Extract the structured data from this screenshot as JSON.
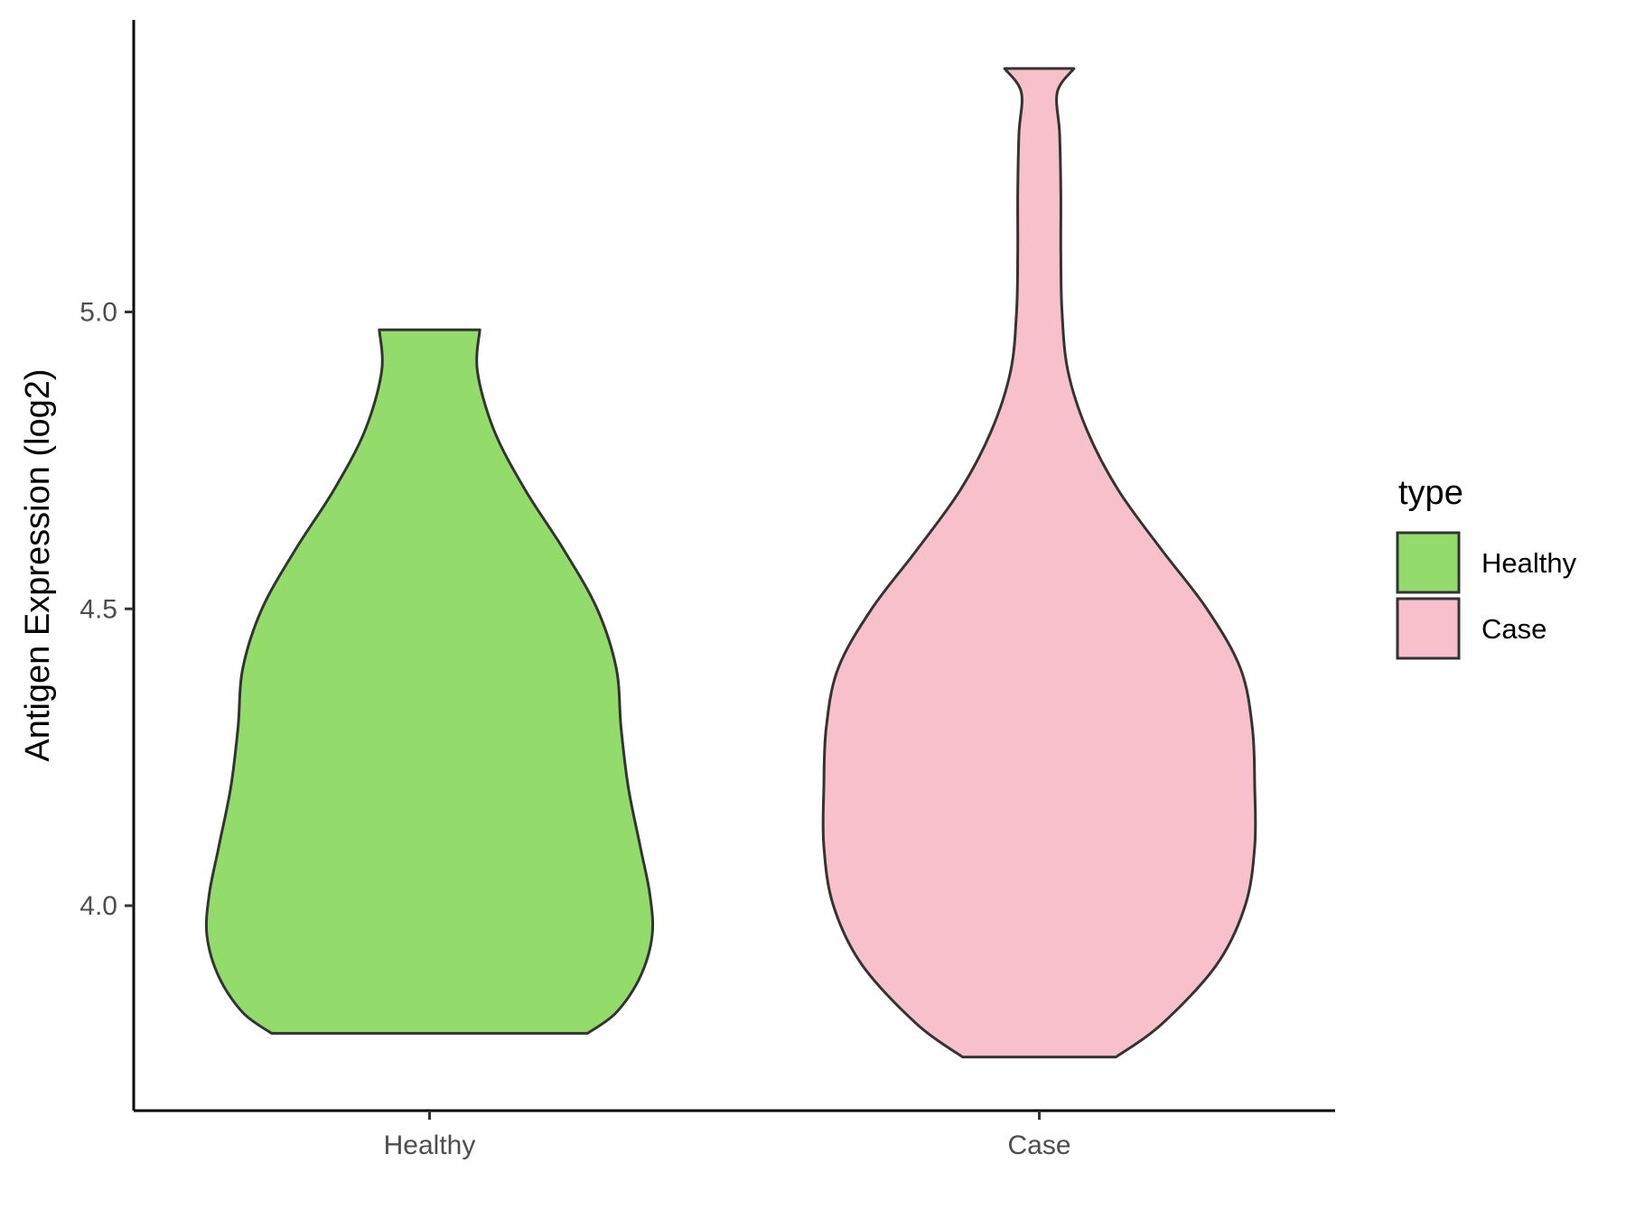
{
  "chart_data": {
    "type": "violin",
    "categories": [
      "Healthy",
      "Case"
    ],
    "ylabel": "Antigen Expression (log2)",
    "xlabel": "",
    "ylim": [
      3.66,
      5.49
    ],
    "yticks": [
      4.0,
      4.5,
      5.0
    ],
    "ytick_labels": [
      "4.0",
      "4.5",
      "5.0"
    ],
    "grid": false,
    "legend": {
      "title": "type",
      "placement": "right",
      "entries": [
        {
          "label": "Healthy",
          "color": "#93dc6b"
        },
        {
          "label": "Case",
          "color": "#f8c0cb"
        }
      ]
    },
    "series": [
      {
        "name": "Healthy",
        "color": "#93dc6b",
        "min": 3.785,
        "max": 4.97,
        "density": [
          [
            3.785,
            0.66
          ],
          [
            3.82,
            0.78
          ],
          [
            3.88,
            0.88
          ],
          [
            3.95,
            0.93
          ],
          [
            4.02,
            0.92
          ],
          [
            4.1,
            0.88
          ],
          [
            4.2,
            0.83
          ],
          [
            4.3,
            0.8
          ],
          [
            4.4,
            0.78
          ],
          [
            4.5,
            0.7
          ],
          [
            4.6,
            0.56
          ],
          [
            4.7,
            0.4
          ],
          [
            4.8,
            0.27
          ],
          [
            4.9,
            0.2
          ],
          [
            4.97,
            0.21
          ]
        ]
      },
      {
        "name": "Case",
        "color": "#f8c0cb",
        "min": 3.745,
        "max": 5.41,
        "density": [
          [
            3.745,
            0.32
          ],
          [
            3.8,
            0.51
          ],
          [
            3.9,
            0.74
          ],
          [
            4.0,
            0.86
          ],
          [
            4.1,
            0.9
          ],
          [
            4.2,
            0.9
          ],
          [
            4.3,
            0.89
          ],
          [
            4.4,
            0.84
          ],
          [
            4.5,
            0.7
          ],
          [
            4.6,
            0.51
          ],
          [
            4.7,
            0.33
          ],
          [
            4.8,
            0.2
          ],
          [
            4.9,
            0.12
          ],
          [
            5.0,
            0.095
          ],
          [
            5.1,
            0.09
          ],
          [
            5.2,
            0.09
          ],
          [
            5.3,
            0.085
          ],
          [
            5.37,
            0.075
          ],
          [
            5.41,
            0.145
          ]
        ]
      }
    ]
  }
}
